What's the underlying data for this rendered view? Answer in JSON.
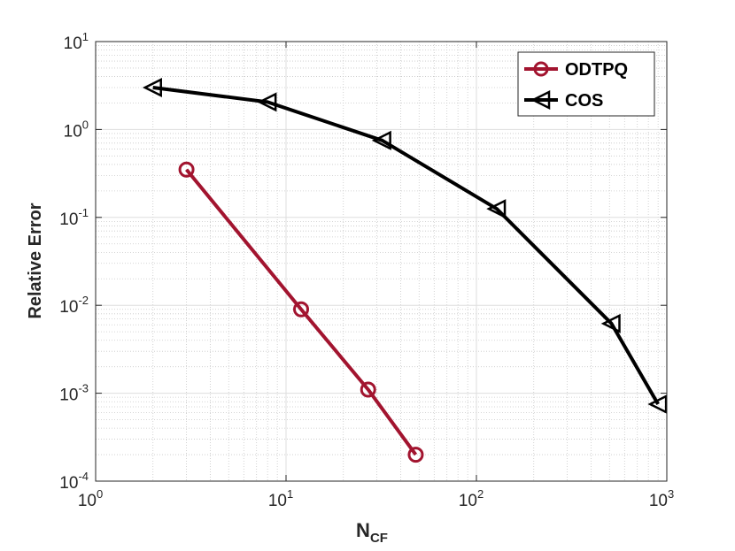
{
  "chart_data": {
    "type": "line",
    "xscale": "log",
    "yscale": "log",
    "xlim": [
      1,
      1000
    ],
    "ylim": [
      0.0001,
      10
    ],
    "xlabel": "N",
    "xlabel_sub": "CF",
    "ylabel": "Relative Error",
    "grid": true,
    "minor_grid": true,
    "legend_position": "top-right",
    "x_ticks": [
      {
        "value": 1,
        "base": "10",
        "exp": "0"
      },
      {
        "value": 10,
        "base": "10",
        "exp": "1"
      },
      {
        "value": 100,
        "base": "10",
        "exp": "2"
      },
      {
        "value": 1000,
        "base": "10",
        "exp": "3"
      }
    ],
    "y_ticks": [
      {
        "value": 0.0001,
        "base": "10",
        "exp": "-4"
      },
      {
        "value": 0.001,
        "base": "10",
        "exp": "-3"
      },
      {
        "value": 0.01,
        "base": "10",
        "exp": "-2"
      },
      {
        "value": 0.1,
        "base": "10",
        "exp": "-1"
      },
      {
        "value": 1,
        "base": "10",
        "exp": "0"
      },
      {
        "value": 10,
        "base": "10",
        "exp": "1"
      }
    ],
    "series": [
      {
        "name": "ODTPQ",
        "color": "#A2142F",
        "marker": "circle",
        "x": [
          3,
          12,
          27,
          48
        ],
        "y": [
          0.35,
          0.009,
          0.0011,
          0.0002
        ]
      },
      {
        "name": "COS",
        "color": "#000000",
        "marker": "triangle-left",
        "x": [
          2,
          8,
          32,
          128,
          512,
          900
        ],
        "y": [
          3.0,
          2.05,
          0.75,
          0.125,
          0.0062,
          0.00075
        ]
      }
    ]
  }
}
